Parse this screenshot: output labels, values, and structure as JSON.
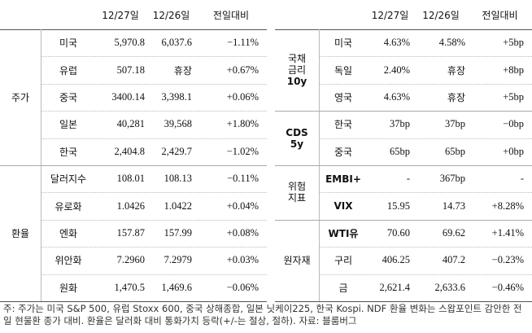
{
  "left": {
    "headers": [
      "12/27일",
      "12/26일",
      "전일대비"
    ],
    "groups": [
      {
        "label": [
          "주가"
        ],
        "rows": [
          [
            "미국",
            "5,970.8",
            "6,037.6",
            "−1.11%"
          ],
          [
            "유럽",
            "507.18",
            "휴장",
            "+0.67%"
          ],
          [
            "중국",
            "3400.14",
            "3,398.1",
            "+0.06%"
          ],
          [
            "일본",
            "40,281",
            "39,568",
            "+1.80%"
          ],
          [
            "한국",
            "2,404.8",
            "2,429.7",
            "−1.02%"
          ]
        ]
      },
      {
        "label": [
          "환율"
        ],
        "rows": [
          [
            "달러지수",
            "108.01",
            "108.13",
            "−0.11%"
          ],
          [
            "유로화",
            "1.0426",
            "1.0422",
            "+0.04%"
          ],
          [
            "엔화",
            "157.87",
            "157.99",
            "+0.08%"
          ],
          [
            "위안화",
            "7.2960",
            "7.2979",
            "+0.03%"
          ],
          [
            "원화",
            "1,470.5",
            "1,469.6",
            "−0.06%"
          ]
        ]
      }
    ]
  },
  "right": {
    "headers": [
      "12/27일",
      "12/26일",
      "전일대비"
    ],
    "groups": [
      {
        "label": [
          "국채",
          "금리",
          "10y"
        ],
        "rows": [
          [
            "미국",
            "4.63%",
            "4.58%",
            "+5bp"
          ],
          [
            "독일",
            "2.40%",
            "휴장",
            "+8bp"
          ],
          [
            "영국",
            "4.63%",
            "휴장",
            "+5bp"
          ]
        ]
      },
      {
        "label": [
          "CDS",
          "5y"
        ],
        "rows": [
          [
            "한국",
            "37bp",
            "37bp",
            "−0bp"
          ],
          [
            "중국",
            "65bp",
            "65bp",
            "+0bp"
          ]
        ]
      },
      {
        "label": [
          "위험",
          "지표"
        ],
        "rows": [
          [
            "EMBI+",
            "-",
            "367bp",
            "-"
          ],
          [
            "VIX",
            "15.95",
            "14.73",
            "+8.28%"
          ]
        ]
      },
      {
        "label": [
          "원자재"
        ],
        "rows": [
          [
            "WTI유",
            "70.60",
            "69.62",
            "+1.41%"
          ],
          [
            "구리",
            "406.25",
            "407.2",
            "−0.23%"
          ],
          [
            "금",
            "2,621.4",
            "2,633.6",
            "−0.46%"
          ]
        ]
      }
    ]
  },
  "note": "주: 주가는 미국 S&P 500, 유럽 Stoxx 600, 중국 상해종합, 일본 닛케이225, 한국 Kospi. NDF 환율 변화는 스왑포인트 감안한 전일 현물환 종가 대비. 환율은 달러화 대비 통화가치 등락(+/-는 절상, 절하). 자료: 블룸버그"
}
